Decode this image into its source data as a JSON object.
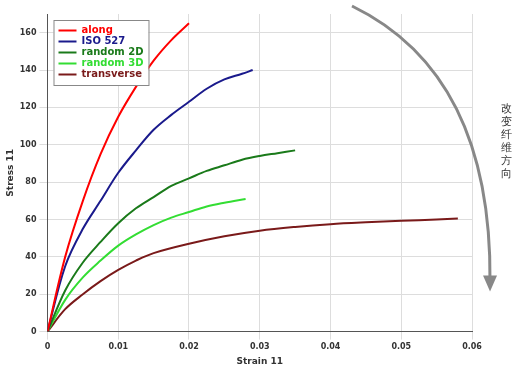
{
  "chart_data": {
    "type": "line",
    "x_label": "Strain 11",
    "y_label": "Stress 11",
    "annotation": "改变纤维方向",
    "xlim": [
      0,
      0.06
    ],
    "xticks": [
      0,
      0.01,
      0.02,
      0.03,
      0.04,
      0.05,
      0.06
    ],
    "ylim": [
      0,
      170
    ],
    "yticks": [
      0,
      20,
      40,
      60,
      80,
      100,
      120,
      140,
      160
    ],
    "grid": true,
    "legend": "upper left",
    "series": [
      {
        "name": "along",
        "color": "#ff0000",
        "x": [
          0,
          0.0025,
          0.005,
          0.0075,
          0.01,
          0.0125,
          0.015,
          0.0175,
          0.02
        ],
        "values": [
          0,
          40,
          70,
          95,
          115,
          131,
          145,
          156,
          165
        ]
      },
      {
        "name": "ISO 527",
        "color": "#1a1a8c",
        "x": [
          0,
          0.0025,
          0.005,
          0.0075,
          0.01,
          0.0125,
          0.015,
          0.0175,
          0.02,
          0.0225,
          0.025,
          0.0275,
          0.029
        ],
        "values": [
          0,
          35,
          55,
          70,
          85,
          97,
          108,
          116,
          123,
          130,
          135,
          138,
          140
        ]
      },
      {
        "name": "random 2D",
        "color": "#1a7a1a",
        "x": [
          0,
          0.0025,
          0.005,
          0.0075,
          0.01,
          0.0125,
          0.015,
          0.0175,
          0.02,
          0.0225,
          0.025,
          0.0275,
          0.03,
          0.0325,
          0.035
        ],
        "values": [
          0,
          22,
          37,
          48,
          58,
          66,
          72,
          78,
          82,
          86,
          89,
          92,
          94,
          95.5,
          97
        ]
      },
      {
        "name": "random 3D",
        "color": "#33dd33",
        "x": [
          0,
          0.0025,
          0.005,
          0.0075,
          0.01,
          0.0125,
          0.015,
          0.0175,
          0.02,
          0.0225,
          0.025,
          0.028
        ],
        "values": [
          0,
          17,
          29,
          38,
          46,
          52,
          57,
          61,
          64,
          67,
          69,
          71
        ]
      },
      {
        "name": "transverse",
        "color": "#7a1a1a",
        "x": [
          0,
          0.0025,
          0.005,
          0.0075,
          0.01,
          0.0125,
          0.015,
          0.02,
          0.025,
          0.03,
          0.035,
          0.04,
          0.045,
          0.05,
          0.055,
          0.058
        ],
        "values": [
          0,
          12,
          20,
          27,
          33,
          38,
          42,
          47,
          51,
          54,
          56,
          57.5,
          58.5,
          59.3,
          60,
          60.5
        ]
      }
    ]
  }
}
